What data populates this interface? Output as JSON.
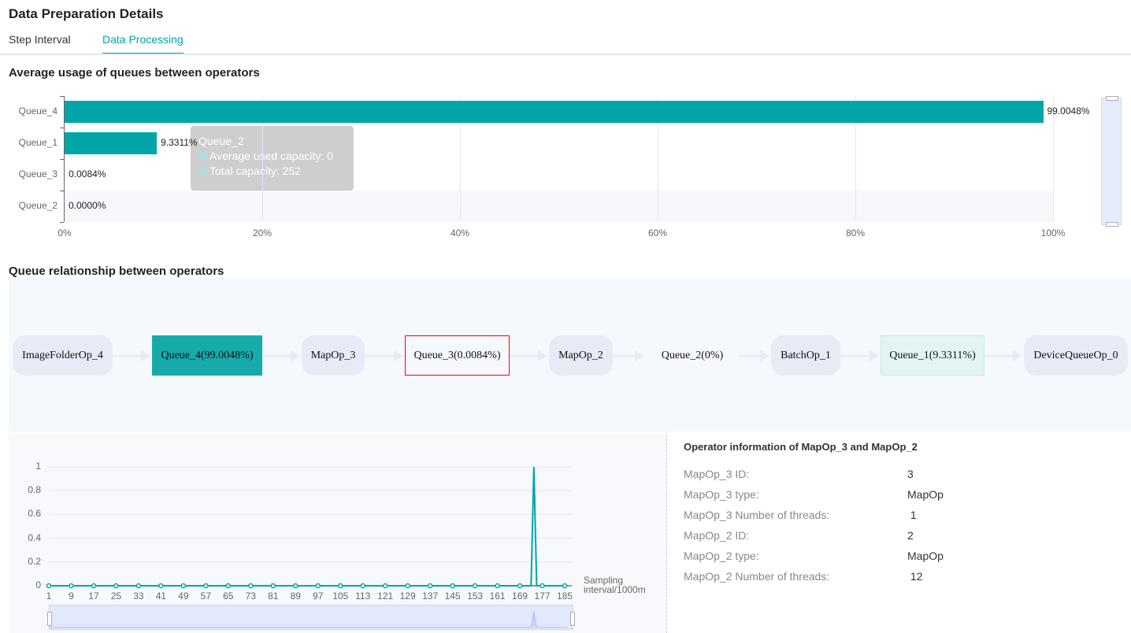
{
  "header": {
    "title": "Data Preparation Details"
  },
  "tabs": [
    {
      "label": "Step Interval",
      "active": false
    },
    {
      "label": "Data Processing",
      "active": true
    }
  ],
  "queue_usage": {
    "title": "Average usage of queues between operators",
    "chart_data": {
      "type": "bar",
      "orientation": "horizontal",
      "categories": [
        "Queue_4",
        "Queue_1",
        "Queue_3",
        "Queue_2"
      ],
      "values": [
        99.0048,
        9.3311,
        0.0084,
        0.0
      ],
      "value_labels": [
        "99.0048%",
        "9.3311%",
        "0.0084%",
        "0.0000%"
      ],
      "xlim": [
        0,
        100
      ],
      "xticks": [
        "0%",
        "20%",
        "40%",
        "60%",
        "80%",
        "100%"
      ],
      "grid": true,
      "color": "#00a5a7",
      "highlighted_category": "Queue_2"
    },
    "tooltip": {
      "title": "Queue_2",
      "rows": [
        "Average used capacity:  0",
        "Total capacity:  252"
      ]
    }
  },
  "relationship": {
    "title": "Queue relationship between operators",
    "nodes": [
      {
        "label": "ImageFolderOp_4",
        "kind": "op"
      },
      {
        "label": "Queue_4(99.0048%)",
        "kind": "queue",
        "fill": "#16aaaa"
      },
      {
        "label": "MapOp_3",
        "kind": "op"
      },
      {
        "label": "Queue_3(0.0084%)",
        "kind": "queue",
        "selected": true,
        "border": "#ff0000"
      },
      {
        "label": "MapOp_2",
        "kind": "op"
      },
      {
        "label": "Queue_2(0%)",
        "kind": "queue"
      },
      {
        "label": "BatchOp_1",
        "kind": "op"
      },
      {
        "label": "Queue_1(9.3311%)",
        "kind": "queue",
        "fill": "#e3f4f4"
      },
      {
        "label": "DeviceQueueOp_0",
        "kind": "op"
      }
    ]
  },
  "queue_trend": {
    "chart_data": {
      "type": "line",
      "xlabel": "Sampling interval/1000m",
      "x_range": [
        1,
        186
      ],
      "xticks": [
        1,
        9,
        17,
        25,
        33,
        41,
        49,
        57,
        65,
        73,
        81,
        89,
        97,
        105,
        113,
        121,
        129,
        137,
        145,
        153,
        161,
        169,
        177,
        185
      ],
      "ylim": [
        0,
        1
      ],
      "yticks": [
        "0",
        "0.2",
        "0.4",
        "0.6",
        "0.8",
        "1"
      ],
      "points": [
        [
          1,
          0
        ],
        [
          173,
          0
        ],
        [
          174,
          1
        ],
        [
          175,
          0
        ],
        [
          186,
          0
        ]
      ],
      "color": "#00a5a7",
      "grid": true
    }
  },
  "operator_info": {
    "title": "Operator information of MapOp_3 and MapOp_2",
    "rows": [
      {
        "key": "MapOp_3 ID:",
        "value": "3"
      },
      {
        "key": "MapOp_3 type:",
        "value": "MapOp"
      },
      {
        "key": "MapOp_3 Number of threads:",
        "value": " 1"
      },
      {
        "key": "MapOp_2 ID:",
        "value": "2"
      },
      {
        "key": "MapOp_2 type:",
        "value": "MapOp"
      },
      {
        "key": "MapOp_2 Number of threads:",
        "value": " 12"
      }
    ]
  }
}
